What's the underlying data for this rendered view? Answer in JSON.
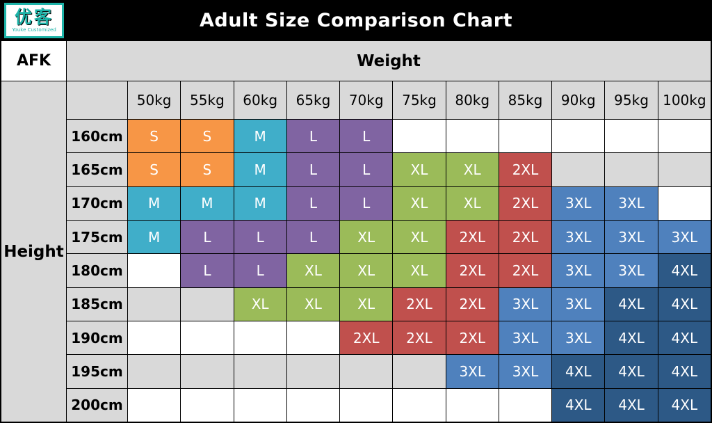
{
  "title": "Adult Size Comparison Chart",
  "logo": {
    "chars": "优客",
    "subtext": "Youke Customized",
    "accent_color": "#1db3a8"
  },
  "header": {
    "corner_label": "AFK",
    "weight_label": "Weight",
    "height_label": "Height"
  },
  "colors": {
    "title_bar_bg": "#000000",
    "title_text": "#ffffff",
    "header_cell_bg": "#d9d9d9",
    "band_light": "#ffffff",
    "band_dark": "#d9d9d9",
    "border": "#000000"
  },
  "chart_data": {
    "type": "table",
    "title": "Adult Size Comparison Chart",
    "xlabel": "Weight",
    "ylabel": "Height",
    "columns": [
      "50kg",
      "55kg",
      "60kg",
      "65kg",
      "70kg",
      "75kg",
      "80kg",
      "85kg",
      "90kg",
      "95kg",
      "100kg"
    ],
    "rows": [
      "160cm",
      "165cm",
      "170cm",
      "175cm",
      "180cm",
      "185cm",
      "190cm",
      "195cm",
      "200cm"
    ],
    "cells": [
      [
        "S",
        "S",
        "M",
        "L",
        "L",
        "",
        "",
        "",
        "",
        "",
        ""
      ],
      [
        "S",
        "S",
        "M",
        "L",
        "L",
        "XL",
        "XL",
        "2XL",
        "",
        "",
        ""
      ],
      [
        "M",
        "M",
        "M",
        "L",
        "L",
        "XL",
        "XL",
        "2XL",
        "3XL",
        "3XL",
        ""
      ],
      [
        "M",
        "L",
        "L",
        "L",
        "XL",
        "XL",
        "2XL",
        "2XL",
        "3XL",
        "3XL",
        "3XL"
      ],
      [
        "",
        "L",
        "L",
        "XL",
        "XL",
        "XL",
        "2XL",
        "2XL",
        "3XL",
        "3XL",
        "4XL"
      ],
      [
        "",
        "",
        "XL",
        "XL",
        "XL",
        "2XL",
        "2XL",
        "3XL",
        "3XL",
        "4XL",
        "4XL"
      ],
      [
        "",
        "",
        "",
        "",
        "2XL",
        "2XL",
        "2XL",
        "3XL",
        "3XL",
        "4XL",
        "4XL"
      ],
      [
        "",
        "",
        "",
        "",
        "",
        "",
        "3XL",
        "3XL",
        "4XL",
        "4XL",
        "4XL"
      ],
      [
        "",
        "",
        "",
        "",
        "",
        "",
        "",
        "",
        "4XL",
        "4XL",
        "4XL"
      ]
    ],
    "size_colors": {
      "S": "#F79646",
      "M": "#40AEC9",
      "L": "#8064A2",
      "XL": "#9BBB59",
      "2XL": "#C0504D",
      "3XL": "#4F81BD",
      "4XL": "#2D5986"
    }
  }
}
